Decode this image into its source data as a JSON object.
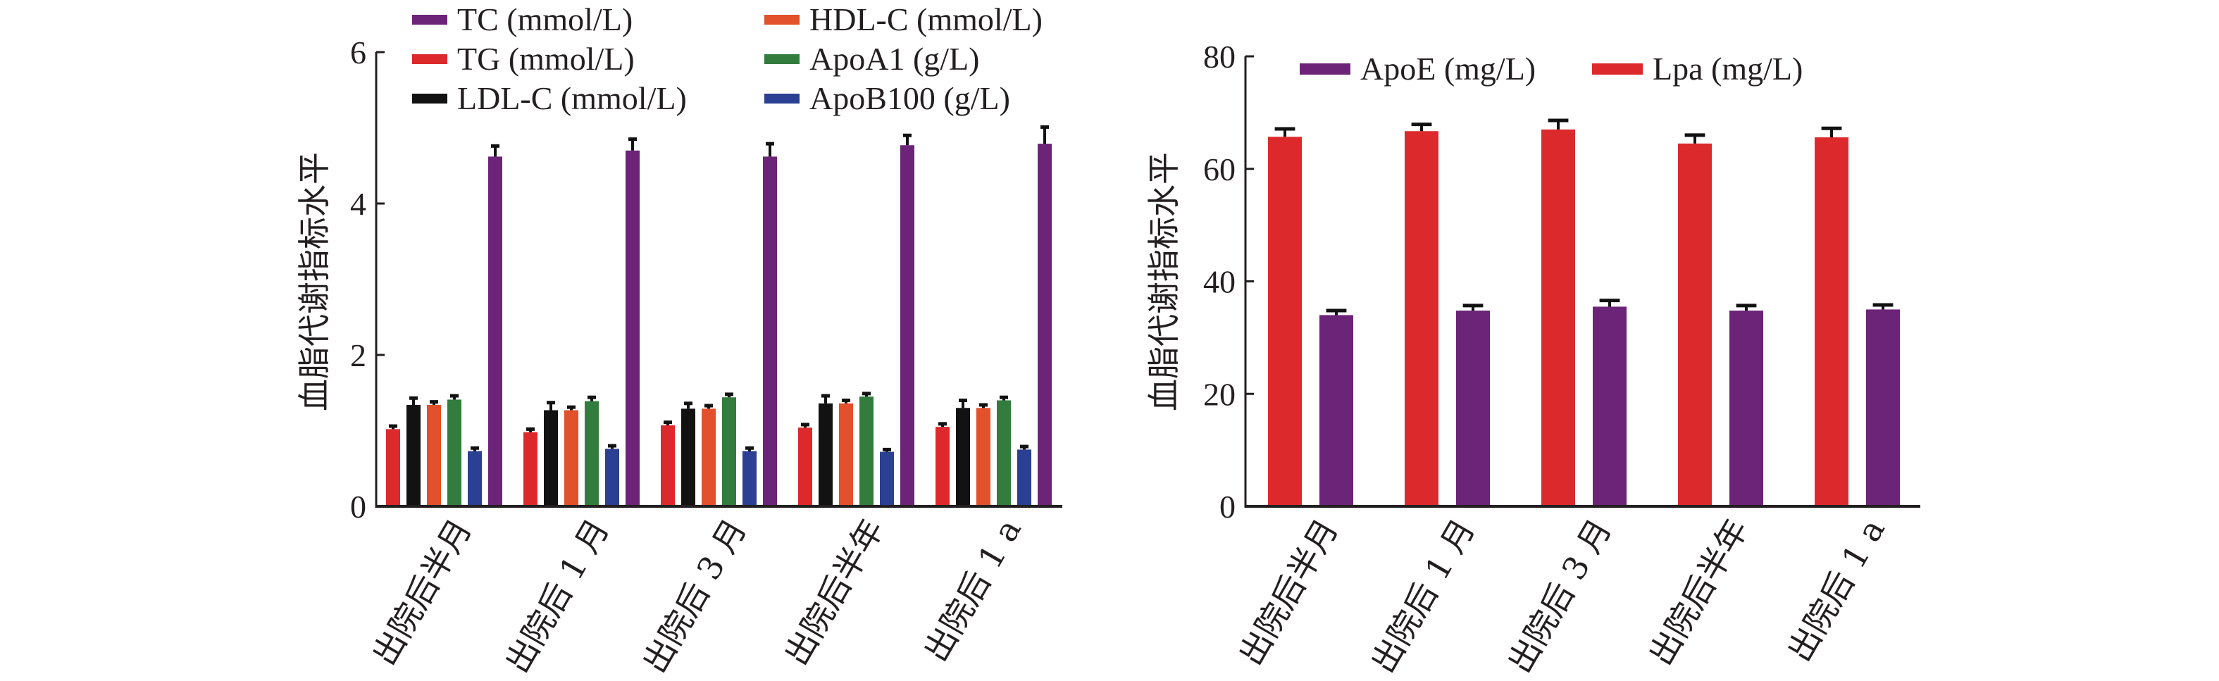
{
  "chart_data": [
    {
      "type": "bar",
      "title": "",
      "xlabel": "",
      "ylabel": "血脂代谢指标水平",
      "ylim": [
        0,
        6
      ],
      "yticks": [
        0,
        2,
        4,
        6
      ],
      "grid": false,
      "legend_position": "top",
      "categories": [
        "出院后半月",
        "出院后 1 月",
        "出院后 3 月",
        "出院后半年",
        "出院后 1 a"
      ],
      "series": [
        {
          "name": "TG (mmol/L)",
          "color": "#dc2a2c",
          "values": [
            1.02,
            0.98,
            1.07,
            1.04,
            1.05
          ],
          "errors": [
            0.04,
            0.04,
            0.04,
            0.04,
            0.04
          ]
        },
        {
          "name": "LDL-C (mmol/L)",
          "color": "#121212",
          "values": [
            1.34,
            1.27,
            1.29,
            1.36,
            1.3
          ],
          "errors": [
            0.09,
            0.1,
            0.07,
            0.1,
            0.1
          ]
        },
        {
          "name": "HDL-C (mmol/L)",
          "color": "#e2512b",
          "values": [
            1.34,
            1.27,
            1.29,
            1.36,
            1.3
          ],
          "errors": [
            0.04,
            0.04,
            0.04,
            0.04,
            0.04
          ]
        },
        {
          "name": "ApoA1 (g/L)",
          "color": "#327c3e",
          "values": [
            1.41,
            1.39,
            1.44,
            1.45,
            1.4
          ],
          "errors": [
            0.05,
            0.05,
            0.04,
            0.04,
            0.04
          ]
        },
        {
          "name": "ApoB100 (g/L)",
          "color": "#2b3f93",
          "values": [
            0.73,
            0.76,
            0.73,
            0.72,
            0.75
          ],
          "errors": [
            0.04,
            0.04,
            0.04,
            0.03,
            0.04
          ]
        },
        {
          "name": "TC (mmol/L)",
          "color": "#6b2477",
          "values": [
            4.62,
            4.7,
            4.62,
            4.77,
            4.79
          ],
          "errors": [
            0.14,
            0.15,
            0.17,
            0.13,
            0.22
          ]
        }
      ],
      "legend_order": [
        [
          "TC (mmol/L)",
          "HDL-C (mmol/L)"
        ],
        [
          "TG (mmol/L)",
          "ApoA1 (g/L)"
        ],
        [
          "LDL-C (mmol/L)",
          "ApoB100 (g/L)"
        ]
      ]
    },
    {
      "type": "bar",
      "title": "",
      "xlabel": "",
      "ylabel": "血脂代谢指标水平",
      "ylim": [
        0,
        80
      ],
      "yticks": [
        0,
        20,
        40,
        60,
        80
      ],
      "grid": false,
      "legend_position": "top",
      "categories": [
        "出院后半月",
        "出院后 1 月",
        "出院后 3 月",
        "出院后半年",
        "出院后 1 a"
      ],
      "series": [
        {
          "name": "Lpa (mg/L)",
          "color": "#dc2a2c",
          "values": [
            65.7,
            66.7,
            67.0,
            64.5,
            65.6
          ],
          "errors": [
            1.4,
            1.2,
            1.6,
            1.5,
            1.6
          ]
        },
        {
          "name": "ApoE (mg/L)",
          "color": "#6b2477",
          "values": [
            34.0,
            34.8,
            35.5,
            34.8,
            35.0
          ],
          "errors": [
            0.8,
            0.9,
            1.1,
            0.9,
            0.8
          ]
        }
      ],
      "legend_order": [
        [
          "ApoE (mg/L)",
          "Lpa (mg/L)"
        ]
      ]
    }
  ]
}
